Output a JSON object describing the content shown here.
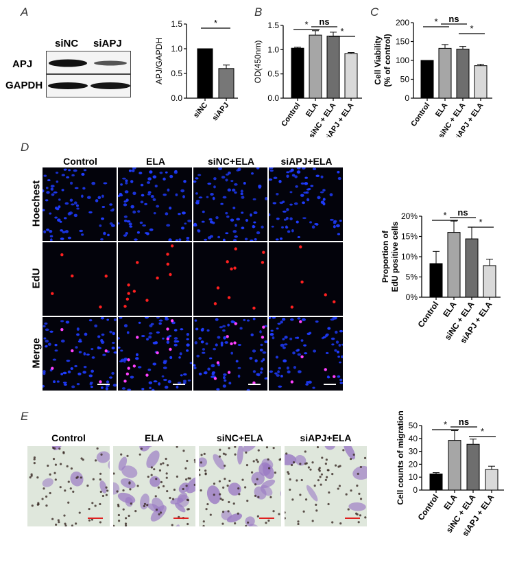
{
  "panel_letters": {
    "a": "A",
    "b": "B",
    "c": "C",
    "d": "D",
    "e": "E"
  },
  "western_blot": {
    "lanes": [
      "siNC",
      "siAPJ"
    ],
    "rows": [
      "APJ",
      "GAPDH"
    ]
  },
  "fluorescence": {
    "columns": [
      "Control",
      "ELA",
      "siNC+ELA",
      "siAPJ+ELA"
    ],
    "rows": [
      "Hoechest",
      "EdU",
      "Merge"
    ],
    "colors": {
      "hoechst": "#1f3cff",
      "edu": "#ff2020",
      "background": "#03030b"
    }
  },
  "migration": {
    "columns": [
      "Control",
      "ELA",
      "siNC+ELA",
      "siAPJ+ELA"
    ],
    "colors": {
      "background": "#dfe7dc",
      "cell": "#9b7bc4",
      "nucleus": "#3a2a26",
      "scalebar": "#e02020"
    }
  },
  "chart_data": [
    {
      "id": "apj",
      "type": "bar",
      "categories": [
        "siNC",
        "siAPJ"
      ],
      "values": [
        1.0,
        0.6
      ],
      "errors": [
        0.0,
        0.07
      ],
      "colors": [
        "#000000",
        "#777777"
      ],
      "ylabel": "APJ/GAPDH",
      "ylim": [
        0,
        1.5
      ],
      "yticks": [
        "0.0",
        "0.5",
        "1.0",
        "1.5"
      ],
      "sig": [
        {
          "from": 0,
          "to": 1,
          "label": "*"
        }
      ]
    },
    {
      "id": "od",
      "type": "bar",
      "categories": [
        "Control",
        "ELA",
        "siNC + ELA",
        "siAPJ + ELA"
      ],
      "values": [
        1.03,
        1.3,
        1.28,
        0.92
      ],
      "errors": [
        0.02,
        0.09,
        0.08,
        0.02
      ],
      "colors": [
        "#000000",
        "#a6a6a6",
        "#6e6e6e",
        "#d9d9d9"
      ],
      "ylabel": "OD(450nm)",
      "ylim": [
        0,
        1.5
      ],
      "yticks": [
        "0.0",
        "0.5",
        "1.0",
        "1.5"
      ],
      "sig": [
        {
          "from": 0,
          "to": 1,
          "label": "*"
        },
        {
          "from": 1,
          "to": 2,
          "label": "ns"
        },
        {
          "from": 2,
          "to": 3,
          "label": "*"
        }
      ]
    },
    {
      "id": "viability",
      "type": "bar",
      "categories": [
        "Control",
        "ELA",
        "siNC + ELA",
        "siAPJ + ELA"
      ],
      "values": [
        100,
        132,
        130,
        86
      ],
      "errors": [
        0,
        10,
        7,
        4
      ],
      "colors": [
        "#000000",
        "#a6a6a6",
        "#6e6e6e",
        "#d9d9d9"
      ],
      "ylabel": "Cell Viability (% of control)",
      "ylabel_lines": [
        "Cell Viability",
        "(% of control)"
      ],
      "ylim": [
        0,
        200
      ],
      "yticks": [
        "0",
        "50",
        "100",
        "150",
        "200"
      ],
      "sig": [
        {
          "from": 0,
          "to": 1,
          "label": "*"
        },
        {
          "from": 1,
          "to": 2,
          "label": "ns"
        },
        {
          "from": 2,
          "to": 3,
          "label": "*"
        }
      ]
    },
    {
      "id": "edu",
      "type": "bar",
      "categories": [
        "Control",
        "ELA",
        "siNC + ELA",
        "siAPJ + ELA"
      ],
      "values": [
        8.3,
        16.0,
        14.4,
        7.8
      ],
      "errors": [
        3.0,
        2.8,
        2.9,
        1.6
      ],
      "colors": [
        "#000000",
        "#a6a6a6",
        "#6e6e6e",
        "#d9d9d9"
      ],
      "ylabel": "Proportion of EdU positive cells",
      "ylabel_lines": [
        "Proportion of",
        "EdU positive cells"
      ],
      "ylim": [
        0,
        20
      ],
      "yticks": [
        "0%",
        "5%",
        "10%",
        "15%",
        "20%"
      ],
      "sig": [
        {
          "from": 0,
          "to": 1,
          "label": "*"
        },
        {
          "from": 1,
          "to": 2,
          "label": "ns"
        },
        {
          "from": 2,
          "to": 3,
          "label": "*"
        }
      ]
    },
    {
      "id": "migration",
      "type": "bar",
      "categories": [
        "Control",
        "ELA",
        "siNC + ELA",
        "siAPJ + ELA"
      ],
      "values": [
        12.5,
        38.5,
        35.5,
        16.0
      ],
      "errors": [
        1.0,
        7.5,
        4.0,
        2.5
      ],
      "colors": [
        "#000000",
        "#a6a6a6",
        "#6e6e6e",
        "#d9d9d9"
      ],
      "ylabel": "Cell counts of migration",
      "ylim": [
        0,
        50
      ],
      "yticks": [
        "0",
        "10",
        "20",
        "30",
        "40",
        "50"
      ],
      "sig": [
        {
          "from": 0,
          "to": 1,
          "label": "*"
        },
        {
          "from": 1,
          "to": 2,
          "label": "ns"
        },
        {
          "from": 2,
          "to": 3,
          "label": "*"
        }
      ]
    }
  ]
}
